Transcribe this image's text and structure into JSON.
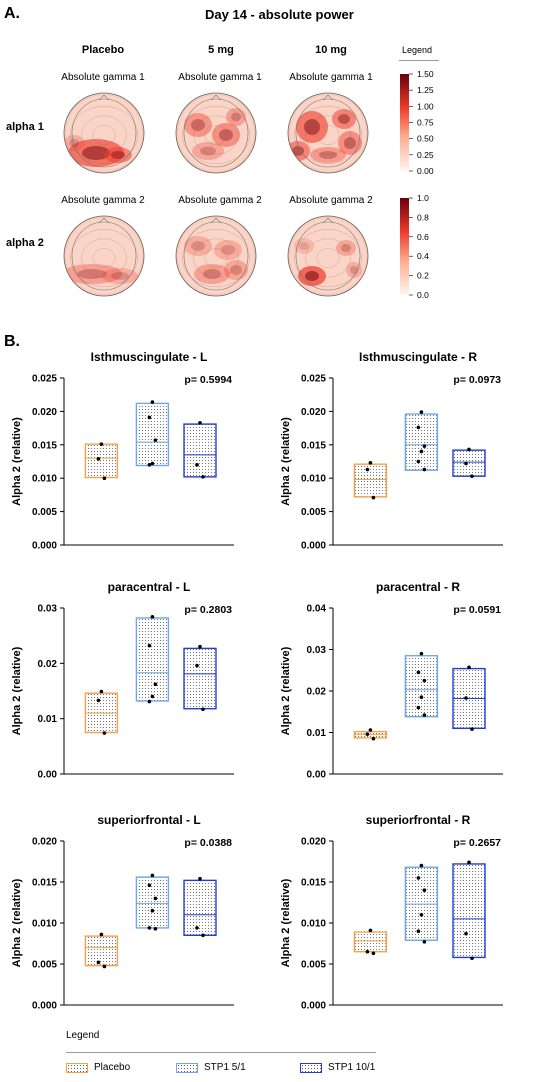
{
  "panel_a": {
    "letter": "A.",
    "title": "Day 14 - absolute power",
    "columns": [
      "Placebo",
      "5 mg",
      "10 mg"
    ],
    "rows": [
      {
        "label": "alpha 1",
        "map_title": "Absolute gamma 1"
      },
      {
        "label": "alpha 2",
        "map_title": "Absolute gamma 2"
      }
    ],
    "legend_title": "Legend",
    "colorbar_1_ticks": [
      "1.50",
      "1.25",
      "1.00",
      "0.75",
      "0.50",
      "0.25",
      "0.00"
    ],
    "colorbar_2_ticks": [
      "1.0",
      "0.8",
      "0.6",
      "0.4",
      "0.2",
      "0.0"
    ],
    "colors": {
      "low": "#fff5f0",
      "mid": "#ef3b2c",
      "high": "#67000d"
    }
  },
  "panel_b": {
    "letter": "B."
  },
  "legend": {
    "title": "Legend",
    "items": [
      {
        "name": "Placebo",
        "color": "#f5a24a"
      },
      {
        "name": "STP1 5/1",
        "color": "#6fa8e8"
      },
      {
        "name": "STP1 10/1",
        "color": "#1f3fd0"
      }
    ]
  },
  "chart_data": [
    {
      "type": "box",
      "title": "Isthmuscingulate - L",
      "annotation": "p= 0.5994",
      "ylabel": "Alpha 2 (relative)",
      "ylim": [
        0,
        0.025
      ],
      "yticks": [
        "0.000",
        "0.005",
        "0.010",
        "0.015",
        "0.020",
        "0.025"
      ],
      "groups": [
        {
          "name": "Placebo",
          "low": 0.0101,
          "high": 0.0151,
          "mid": 0.013,
          "points": [
            0.0151,
            0.0129,
            0.01
          ]
        },
        {
          "name": "STP1 5/1",
          "low": 0.0119,
          "high": 0.0212,
          "mid": 0.0154,
          "points": [
            0.0214,
            0.0191,
            0.0157,
            0.0122,
            0.012
          ]
        },
        {
          "name": "STP1 10/1",
          "low": 0.0102,
          "high": 0.0181,
          "mid": 0.0135,
          "points": [
            0.0183,
            0.012,
            0.0102
          ]
        }
      ]
    },
    {
      "type": "box",
      "title": "Isthmuscingulate - R",
      "annotation": "p= 0.0973",
      "ylabel": "Alpha 2 (relative)",
      "ylim": [
        0,
        0.025
      ],
      "yticks": [
        "0.000",
        "0.005",
        "0.010",
        "0.015",
        "0.020",
        "0.025"
      ],
      "groups": [
        {
          "name": "Placebo",
          "low": 0.0072,
          "high": 0.0121,
          "mid": 0.0098,
          "points": [
            0.0123,
            0.0113,
            0.0071
          ]
        },
        {
          "name": "STP1 5/1",
          "low": 0.0112,
          "high": 0.0196,
          "mid": 0.015,
          "points": [
            0.0199,
            0.0176,
            0.0148,
            0.014,
            0.0125,
            0.0113
          ]
        },
        {
          "name": "STP1 10/1",
          "low": 0.0103,
          "high": 0.0142,
          "mid": 0.0124,
          "points": [
            0.0143,
            0.0122,
            0.0103
          ]
        }
      ]
    },
    {
      "type": "box",
      "title": "paracentral - L",
      "annotation": "p= 0.2803",
      "ylabel": "Alpha 2 (relative)",
      "ylim": [
        0,
        0.03
      ],
      "yticks": [
        "0.00",
        "0.01",
        "0.02",
        "0.03"
      ],
      "groups": [
        {
          "name": "Placebo",
          "low": 0.0075,
          "high": 0.0146,
          "mid": 0.011,
          "points": [
            0.0149,
            0.0133,
            0.0074
          ]
        },
        {
          "name": "STP1 5/1",
          "low": 0.0132,
          "high": 0.0282,
          "mid": 0.0183,
          "points": [
            0.0284,
            0.0232,
            0.0162,
            0.014,
            0.0131
          ]
        },
        {
          "name": "STP1 10/1",
          "low": 0.0118,
          "high": 0.0227,
          "mid": 0.0181,
          "points": [
            0.023,
            0.0196,
            0.0117
          ]
        }
      ]
    },
    {
      "type": "box",
      "title": "paracentral - R",
      "annotation": "p= 0.0591",
      "ylabel": "Alpha 2 (relative)",
      "ylim": [
        0,
        0.04
      ],
      "yticks": [
        "0.00",
        "0.01",
        "0.02",
        "0.03",
        "0.04"
      ],
      "groups": [
        {
          "name": "Placebo",
          "low": 0.0087,
          "high": 0.0102,
          "mid": 0.0095,
          "points": [
            0.0106,
            0.0096,
            0.0085
          ]
        },
        {
          "name": "STP1 5/1",
          "low": 0.0138,
          "high": 0.0285,
          "mid": 0.0203,
          "points": [
            0.029,
            0.0245,
            0.0225,
            0.0185,
            0.016,
            0.0142
          ]
        },
        {
          "name": "STP1 10/1",
          "low": 0.011,
          "high": 0.0254,
          "mid": 0.0182,
          "points": [
            0.0257,
            0.0183,
            0.0108
          ]
        }
      ]
    },
    {
      "type": "box",
      "title": "superiorfrontal - L",
      "annotation": "p= 0.0388",
      "ylabel": "Alpha 2 (relative)",
      "ylim": [
        0,
        0.02
      ],
      "yticks": [
        "0.000",
        "0.005",
        "0.010",
        "0.015",
        "0.020"
      ],
      "groups": [
        {
          "name": "Placebo",
          "low": 0.0048,
          "high": 0.0084,
          "mid": 0.007,
          "points": [
            0.0086,
            0.0052,
            0.0047
          ]
        },
        {
          "name": "STP1 5/1",
          "low": 0.0094,
          "high": 0.0156,
          "mid": 0.0124,
          "points": [
            0.0158,
            0.0146,
            0.013,
            0.0115,
            0.0094,
            0.0093
          ]
        },
        {
          "name": "STP1 10/1",
          "low": 0.0085,
          "high": 0.0152,
          "mid": 0.011,
          "points": [
            0.0154,
            0.0094,
            0.0085
          ]
        }
      ]
    },
    {
      "type": "box",
      "title": "superiorfrontal - R",
      "annotation": "p= 0.2657",
      "ylabel": "Alpha 2 (relative)",
      "ylim": [
        0,
        0.02
      ],
      "yticks": [
        "0.000",
        "0.005",
        "0.010",
        "0.015",
        "0.020"
      ],
      "groups": [
        {
          "name": "Placebo",
          "low": 0.0065,
          "high": 0.0089,
          "mid": 0.0078,
          "points": [
            0.0091,
            0.0065,
            0.0063
          ]
        },
        {
          "name": "STP1 5/1",
          "low": 0.0079,
          "high": 0.0168,
          "mid": 0.0123,
          "points": [
            0.017,
            0.0155,
            0.014,
            0.011,
            0.009,
            0.0077
          ]
        },
        {
          "name": "STP1 10/1",
          "low": 0.0058,
          "high": 0.0172,
          "mid": 0.0105,
          "points": [
            0.0174,
            0.0087,
            0.0057
          ]
        }
      ]
    }
  ]
}
